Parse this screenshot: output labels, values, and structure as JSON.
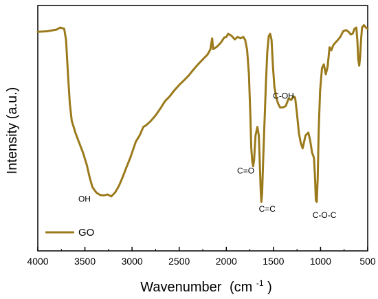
{
  "chart_data": {
    "type": "line",
    "xlabel": "Wavenumber",
    "xlabel_unit_base": "(cm",
    "xlabel_unit_exp": "-1",
    "xlabel_unit_close": ")",
    "ylabel": "Intensity (a.u.)",
    "xlim": [
      4000,
      500
    ],
    "x_reversed": true,
    "ylim": [
      0,
      1
    ],
    "y_ticks_shown": false,
    "grid": false,
    "legend_position": "bottom-left",
    "x_ticks": [
      "4000",
      "3500",
      "3000",
      "2500",
      "2000",
      "1500",
      "1000",
      "500"
    ],
    "series": [
      {
        "name": "GO",
        "color": "#9b7a1c",
        "points": [
          [
            4000,
            0.893
          ],
          [
            3900,
            0.895
          ],
          [
            3800,
            0.902
          ],
          [
            3760,
            0.91
          ],
          [
            3720,
            0.905
          ],
          [
            3700,
            0.86
          ],
          [
            3680,
            0.72
          ],
          [
            3660,
            0.6
          ],
          [
            3640,
            0.53
          ],
          [
            3600,
            0.48
          ],
          [
            3560,
            0.44
          ],
          [
            3520,
            0.4
          ],
          [
            3480,
            0.35
          ],
          [
            3450,
            0.3
          ],
          [
            3420,
            0.26
          ],
          [
            3380,
            0.238
          ],
          [
            3340,
            0.228
          ],
          [
            3300,
            0.226
          ],
          [
            3260,
            0.23
          ],
          [
            3220,
            0.222
          ],
          [
            3180,
            0.238
          ],
          [
            3140,
            0.264
          ],
          [
            3100,
            0.3
          ],
          [
            3060,
            0.34
          ],
          [
            3020,
            0.378
          ],
          [
            3000,
            0.4
          ],
          [
            2960,
            0.445
          ],
          [
            2920,
            0.47
          ],
          [
            2880,
            0.505
          ],
          [
            2850,
            0.512
          ],
          [
            2800,
            0.53
          ],
          [
            2750,
            0.552
          ],
          [
            2700,
            0.58
          ],
          [
            2650,
            0.61
          ],
          [
            2600,
            0.63
          ],
          [
            2550,
            0.655
          ],
          [
            2500,
            0.676
          ],
          [
            2450,
            0.695
          ],
          [
            2400,
            0.714
          ],
          [
            2350,
            0.738
          ],
          [
            2300,
            0.76
          ],
          [
            2250,
            0.78
          ],
          [
            2200,
            0.8
          ],
          [
            2170,
            0.82
          ],
          [
            2150,
            0.866
          ],
          [
            2140,
            0.822
          ],
          [
            2100,
            0.832
          ],
          [
            2060,
            0.848
          ],
          [
            2020,
            0.87
          ],
          [
            2000,
            0.872
          ],
          [
            1980,
            0.885
          ],
          [
            1960,
            0.88
          ],
          [
            1940,
            0.875
          ],
          [
            1910,
            0.862
          ],
          [
            1880,
            0.872
          ],
          [
            1850,
            0.866
          ],
          [
            1820,
            0.872
          ],
          [
            1800,
            0.86
          ],
          [
            1780,
            0.82
          ],
          [
            1760,
            0.72
          ],
          [
            1745,
            0.55
          ],
          [
            1735,
            0.42
          ],
          [
            1725,
            0.365
          ],
          [
            1715,
            0.345
          ],
          [
            1705,
            0.37
          ],
          [
            1690,
            0.47
          ],
          [
            1670,
            0.505
          ],
          [
            1655,
            0.47
          ],
          [
            1645,
            0.36
          ],
          [
            1635,
            0.25
          ],
          [
            1628,
            0.2
          ],
          [
            1620,
            0.235
          ],
          [
            1610,
            0.36
          ],
          [
            1595,
            0.52
          ],
          [
            1580,
            0.68
          ],
          [
            1565,
            0.81
          ],
          [
            1550,
            0.875
          ],
          [
            1535,
            0.885
          ],
          [
            1520,
            0.86
          ],
          [
            1505,
            0.75
          ],
          [
            1490,
            0.67
          ],
          [
            1470,
            0.625
          ],
          [
            1450,
            0.6
          ],
          [
            1430,
            0.585
          ],
          [
            1400,
            0.585
          ],
          [
            1370,
            0.59
          ],
          [
            1340,
            0.62
          ],
          [
            1310,
            0.615
          ],
          [
            1290,
            0.63
          ],
          [
            1270,
            0.625
          ],
          [
            1250,
            0.56
          ],
          [
            1230,
            0.48
          ],
          [
            1210,
            0.44
          ],
          [
            1190,
            0.418
          ],
          [
            1160,
            0.47
          ],
          [
            1130,
            0.482
          ],
          [
            1110,
            0.45
          ],
          [
            1090,
            0.4
          ],
          [
            1070,
            0.38
          ],
          [
            1060,
            0.31
          ],
          [
            1050,
            0.205
          ],
          [
            1040,
            0.2
          ],
          [
            1030,
            0.3
          ],
          [
            1020,
            0.49
          ],
          [
            1005,
            0.65
          ],
          [
            985,
            0.745
          ],
          [
            965,
            0.76
          ],
          [
            945,
            0.72
          ],
          [
            925,
            0.75
          ],
          [
            905,
            0.83
          ],
          [
            885,
            0.818
          ],
          [
            865,
            0.838
          ],
          [
            845,
            0.848
          ],
          [
            820,
            0.858
          ],
          [
            790,
            0.872
          ],
          [
            760,
            0.895
          ],
          [
            730,
            0.9
          ],
          [
            700,
            0.892
          ],
          [
            680,
            0.882
          ],
          [
            660,
            0.885
          ],
          [
            640,
            0.905
          ],
          [
            620,
            0.91
          ],
          [
            610,
            0.86
          ],
          [
            600,
            0.78
          ],
          [
            590,
            0.755
          ],
          [
            580,
            0.79
          ],
          [
            570,
            0.862
          ],
          [
            560,
            0.91
          ],
          [
            540,
            0.92
          ],
          [
            520,
            0.91
          ],
          [
            500,
            0.905
          ]
        ]
      }
    ],
    "annotations": [
      {
        "text": "OH",
        "x": 3570,
        "y": 0.2
      },
      {
        "text": "C=O",
        "x": 1885,
        "y": 0.315
      },
      {
        "text": "C=C",
        "x": 1655,
        "y": 0.16
      },
      {
        "text": "C-OH",
        "x": 1505,
        "y": 0.62
      },
      {
        "text": "C-O-C",
        "x": 1085,
        "y": 0.135
      }
    ],
    "legend": [
      {
        "label": "GO",
        "color": "#9b7a1c"
      }
    ]
  }
}
